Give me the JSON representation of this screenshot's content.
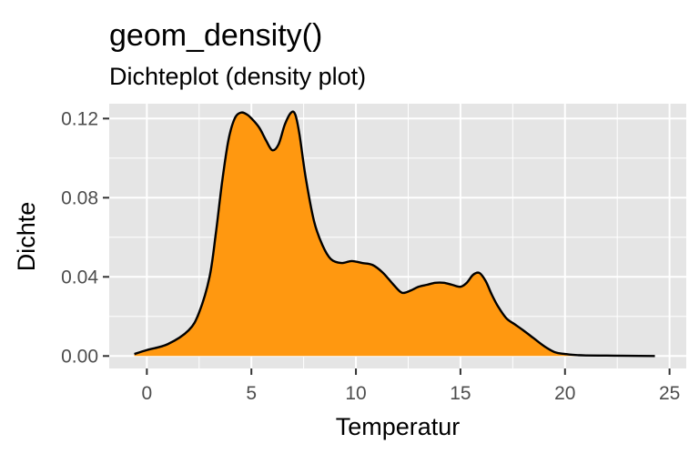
{
  "chart_data": {
    "type": "area",
    "title": "geom_density()",
    "subtitle": "Dichteplot (density plot)",
    "xlabel": "Temperatur",
    "ylabel": "Dichte",
    "xlim": [
      -1.8,
      25.8
    ],
    "ylim": [
      -0.0063,
      0.1275
    ],
    "x_ticks": [
      0,
      5,
      10,
      15,
      20,
      25
    ],
    "x_tick_labels": [
      "0",
      "5",
      "10",
      "15",
      "20",
      "25"
    ],
    "y_ticks": [
      0,
      0.04,
      0.08,
      0.12
    ],
    "y_tick_labels": [
      "0.00",
      "0.04",
      "0.08",
      "0.12"
    ],
    "grid": true,
    "fill_color": "#ff9810",
    "line_color": "#000000",
    "panel_background": "#e5e5e5",
    "grid_color": "#ffffff",
    "x": [
      -0.6,
      0.0,
      1.0,
      2.0,
      2.5,
      3.0,
      3.3,
      3.6,
      3.9,
      4.2,
      4.5,
      4.8,
      5.1,
      5.4,
      5.7,
      6.0,
      6.3,
      6.6,
      6.9,
      7.1,
      7.3,
      7.6,
      8.0,
      8.4,
      8.8,
      9.3,
      9.8,
      10.3,
      10.8,
      11.3,
      11.8,
      12.2,
      12.6,
      13.0,
      13.4,
      13.8,
      14.2,
      14.6,
      15.0,
      15.3,
      15.6,
      15.9,
      16.2,
      16.5,
      16.8,
      17.2,
      17.6,
      18.0,
      18.5,
      19.0,
      19.5,
      20.0,
      20.5,
      21.0,
      22.0,
      23.0,
      24.3
    ],
    "y": [
      0.001,
      0.003,
      0.006,
      0.013,
      0.022,
      0.04,
      0.062,
      0.088,
      0.109,
      0.12,
      0.123,
      0.122,
      0.119,
      0.115,
      0.109,
      0.104,
      0.107,
      0.117,
      0.123,
      0.122,
      0.112,
      0.09,
      0.068,
      0.056,
      0.049,
      0.047,
      0.048,
      0.047,
      0.046,
      0.042,
      0.036,
      0.032,
      0.033,
      0.035,
      0.036,
      0.037,
      0.037,
      0.036,
      0.035,
      0.037,
      0.041,
      0.042,
      0.038,
      0.031,
      0.025,
      0.019,
      0.016,
      0.013,
      0.009,
      0.005,
      0.002,
      0.001,
      0.0005,
      0.0003,
      0.0002,
      0.0001,
      0.0
    ]
  }
}
